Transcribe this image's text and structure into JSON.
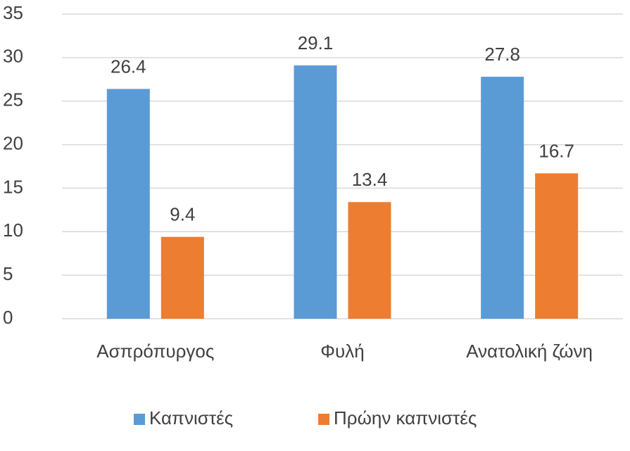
{
  "chart_data": {
    "type": "bar",
    "categories": [
      "Ασπρόπυργος",
      "Φυλή",
      "Ανατολική ζώνη"
    ],
    "series": [
      {
        "name": "Καπνιστές",
        "color": "#5b9bd5",
        "values": [
          26.4,
          29.1,
          27.8
        ]
      },
      {
        "name": "Πρώην καπνιστές",
        "color": "#ed7d31",
        "values": [
          9.4,
          13.4,
          16.7
        ]
      }
    ],
    "ylim": [
      0,
      35
    ],
    "yticks": [
      0,
      5,
      10,
      15,
      20,
      25,
      30,
      35
    ],
    "grid": true,
    "legend": "bottom"
  }
}
